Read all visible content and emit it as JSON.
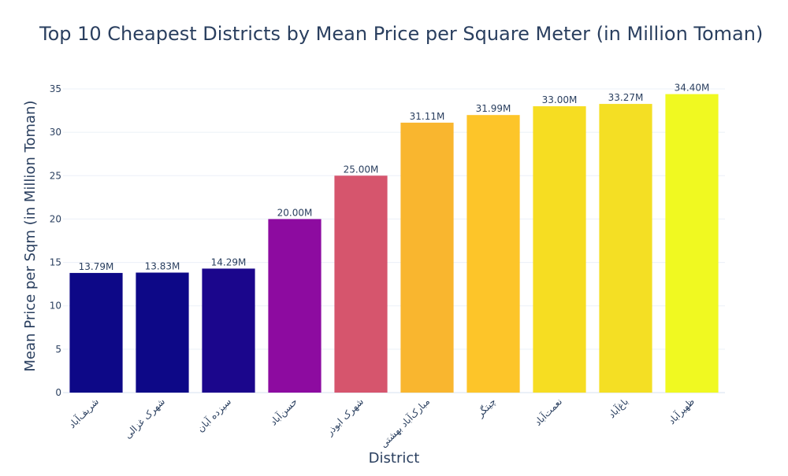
{
  "chart_data": {
    "type": "bar",
    "title": "Top 10 Cheapest Districts by Mean Price per Square Meter (in Million Toman)",
    "xlabel": "District",
    "ylabel": "Mean Price per Sqm (in Million Toman)",
    "ylim": [
      0,
      35
    ],
    "yticks": [
      0,
      5,
      10,
      15,
      20,
      25,
      30,
      35
    ],
    "grid": true,
    "legend": "none",
    "categories": [
      "شریف‌آباد",
      "شهرک غزالی",
      "سیزده آبان",
      "حسن‌آباد",
      "شهرک ابوذر",
      "مبارک‌آباد بهشتی",
      "چیتگر",
      "نعمت‌آباد",
      "باغ‌آباد",
      "ظهیرآباد"
    ],
    "values": [
      13.79,
      13.83,
      14.29,
      20.0,
      25.0,
      31.11,
      31.99,
      33.0,
      33.27,
      34.4
    ],
    "data_labels": [
      "13.79M",
      "13.83M",
      "14.29M",
      "20.00M",
      "25.00M",
      "31.11M",
      "31.99M",
      "33.00M",
      "33.27M",
      "34.40M"
    ],
    "colors": [
      "#0d0887",
      "#0d0887",
      "#1b068c",
      "#8d0ba0",
      "#d6556d",
      "#f9b62f",
      "#fdc529",
      "#f6dd22",
      "#f4df24",
      "#f0f921"
    ]
  }
}
